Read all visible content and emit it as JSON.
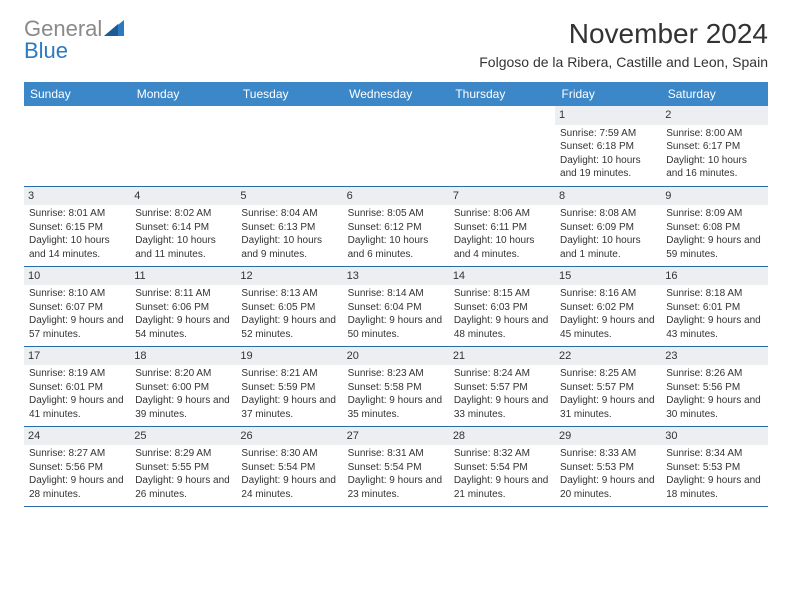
{
  "brand": {
    "part1": "General",
    "part2": "Blue"
  },
  "title": "November 2024",
  "location": "Folgoso de la Ribera, Castille and Leon, Spain",
  "theme": {
    "header_bg": "#3b87c8",
    "header_text": "#ffffff",
    "rule_color": "#2a6aa8",
    "daynum_bg": "#eceff2",
    "page_bg": "#ffffff",
    "text_color": "#333333",
    "brand_gray": "#8a8a8a",
    "brand_blue": "#2a7ac0"
  },
  "columns": [
    "Sunday",
    "Monday",
    "Tuesday",
    "Wednesday",
    "Thursday",
    "Friday",
    "Saturday"
  ],
  "weeks": [
    [
      {
        "blank": true
      },
      {
        "blank": true
      },
      {
        "blank": true
      },
      {
        "blank": true
      },
      {
        "blank": true
      },
      {
        "day": "1",
        "sunrise": "Sunrise: 7:59 AM",
        "sunset": "Sunset: 6:18 PM",
        "daylight": "Daylight: 10 hours and 19 minutes."
      },
      {
        "day": "2",
        "sunrise": "Sunrise: 8:00 AM",
        "sunset": "Sunset: 6:17 PM",
        "daylight": "Daylight: 10 hours and 16 minutes."
      }
    ],
    [
      {
        "day": "3",
        "sunrise": "Sunrise: 8:01 AM",
        "sunset": "Sunset: 6:15 PM",
        "daylight": "Daylight: 10 hours and 14 minutes."
      },
      {
        "day": "4",
        "sunrise": "Sunrise: 8:02 AM",
        "sunset": "Sunset: 6:14 PM",
        "daylight": "Daylight: 10 hours and 11 minutes."
      },
      {
        "day": "5",
        "sunrise": "Sunrise: 8:04 AM",
        "sunset": "Sunset: 6:13 PM",
        "daylight": "Daylight: 10 hours and 9 minutes."
      },
      {
        "day": "6",
        "sunrise": "Sunrise: 8:05 AM",
        "sunset": "Sunset: 6:12 PM",
        "daylight": "Daylight: 10 hours and 6 minutes."
      },
      {
        "day": "7",
        "sunrise": "Sunrise: 8:06 AM",
        "sunset": "Sunset: 6:11 PM",
        "daylight": "Daylight: 10 hours and 4 minutes."
      },
      {
        "day": "8",
        "sunrise": "Sunrise: 8:08 AM",
        "sunset": "Sunset: 6:09 PM",
        "daylight": "Daylight: 10 hours and 1 minute."
      },
      {
        "day": "9",
        "sunrise": "Sunrise: 8:09 AM",
        "sunset": "Sunset: 6:08 PM",
        "daylight": "Daylight: 9 hours and 59 minutes."
      }
    ],
    [
      {
        "day": "10",
        "sunrise": "Sunrise: 8:10 AM",
        "sunset": "Sunset: 6:07 PM",
        "daylight": "Daylight: 9 hours and 57 minutes."
      },
      {
        "day": "11",
        "sunrise": "Sunrise: 8:11 AM",
        "sunset": "Sunset: 6:06 PM",
        "daylight": "Daylight: 9 hours and 54 minutes."
      },
      {
        "day": "12",
        "sunrise": "Sunrise: 8:13 AM",
        "sunset": "Sunset: 6:05 PM",
        "daylight": "Daylight: 9 hours and 52 minutes."
      },
      {
        "day": "13",
        "sunrise": "Sunrise: 8:14 AM",
        "sunset": "Sunset: 6:04 PM",
        "daylight": "Daylight: 9 hours and 50 minutes."
      },
      {
        "day": "14",
        "sunrise": "Sunrise: 8:15 AM",
        "sunset": "Sunset: 6:03 PM",
        "daylight": "Daylight: 9 hours and 48 minutes."
      },
      {
        "day": "15",
        "sunrise": "Sunrise: 8:16 AM",
        "sunset": "Sunset: 6:02 PM",
        "daylight": "Daylight: 9 hours and 45 minutes."
      },
      {
        "day": "16",
        "sunrise": "Sunrise: 8:18 AM",
        "sunset": "Sunset: 6:01 PM",
        "daylight": "Daylight: 9 hours and 43 minutes."
      }
    ],
    [
      {
        "day": "17",
        "sunrise": "Sunrise: 8:19 AM",
        "sunset": "Sunset: 6:01 PM",
        "daylight": "Daylight: 9 hours and 41 minutes."
      },
      {
        "day": "18",
        "sunrise": "Sunrise: 8:20 AM",
        "sunset": "Sunset: 6:00 PM",
        "daylight": "Daylight: 9 hours and 39 minutes."
      },
      {
        "day": "19",
        "sunrise": "Sunrise: 8:21 AM",
        "sunset": "Sunset: 5:59 PM",
        "daylight": "Daylight: 9 hours and 37 minutes."
      },
      {
        "day": "20",
        "sunrise": "Sunrise: 8:23 AM",
        "sunset": "Sunset: 5:58 PM",
        "daylight": "Daylight: 9 hours and 35 minutes."
      },
      {
        "day": "21",
        "sunrise": "Sunrise: 8:24 AM",
        "sunset": "Sunset: 5:57 PM",
        "daylight": "Daylight: 9 hours and 33 minutes."
      },
      {
        "day": "22",
        "sunrise": "Sunrise: 8:25 AM",
        "sunset": "Sunset: 5:57 PM",
        "daylight": "Daylight: 9 hours and 31 minutes."
      },
      {
        "day": "23",
        "sunrise": "Sunrise: 8:26 AM",
        "sunset": "Sunset: 5:56 PM",
        "daylight": "Daylight: 9 hours and 30 minutes."
      }
    ],
    [
      {
        "day": "24",
        "sunrise": "Sunrise: 8:27 AM",
        "sunset": "Sunset: 5:56 PM",
        "daylight": "Daylight: 9 hours and 28 minutes."
      },
      {
        "day": "25",
        "sunrise": "Sunrise: 8:29 AM",
        "sunset": "Sunset: 5:55 PM",
        "daylight": "Daylight: 9 hours and 26 minutes."
      },
      {
        "day": "26",
        "sunrise": "Sunrise: 8:30 AM",
        "sunset": "Sunset: 5:54 PM",
        "daylight": "Daylight: 9 hours and 24 minutes."
      },
      {
        "day": "27",
        "sunrise": "Sunrise: 8:31 AM",
        "sunset": "Sunset: 5:54 PM",
        "daylight": "Daylight: 9 hours and 23 minutes."
      },
      {
        "day": "28",
        "sunrise": "Sunrise: 8:32 AM",
        "sunset": "Sunset: 5:54 PM",
        "daylight": "Daylight: 9 hours and 21 minutes."
      },
      {
        "day": "29",
        "sunrise": "Sunrise: 8:33 AM",
        "sunset": "Sunset: 5:53 PM",
        "daylight": "Daylight: 9 hours and 20 minutes."
      },
      {
        "day": "30",
        "sunrise": "Sunrise: 8:34 AM",
        "sunset": "Sunset: 5:53 PM",
        "daylight": "Daylight: 9 hours and 18 minutes."
      }
    ]
  ]
}
